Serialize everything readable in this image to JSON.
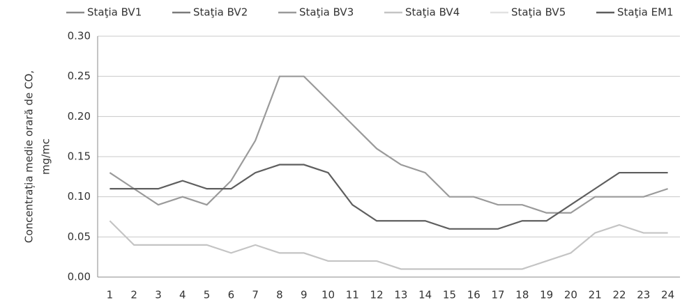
{
  "chart_data": {
    "type": "line",
    "ylabel": [
      "Concentrația medie orară de CO,",
      "mg/mc"
    ],
    "categories": [
      "1",
      "2",
      "3",
      "4",
      "5",
      "6",
      "7",
      "8",
      "9",
      "10",
      "11",
      "12",
      "13",
      "14",
      "15",
      "16",
      "17",
      "18",
      "19",
      "20",
      "21",
      "22",
      "23",
      "24"
    ],
    "series": [
      {
        "name": "Staţia BV1",
        "color": "#8a8a8a",
        "values": [
          null,
          null,
          null,
          null,
          null,
          null,
          null,
          null,
          null,
          null,
          null,
          null,
          null,
          null,
          null,
          null,
          null,
          null,
          null,
          null,
          null,
          null,
          null,
          null
        ]
      },
      {
        "name": "Staţia BV2",
        "color": "#7a7a7a",
        "values": [
          null,
          null,
          null,
          null,
          null,
          null,
          null,
          null,
          null,
          null,
          null,
          null,
          null,
          null,
          null,
          null,
          null,
          null,
          null,
          null,
          null,
          null,
          null,
          null
        ]
      },
      {
        "name": "Staţia BV3",
        "color": "#9a9a9a",
        "values": [
          0.13,
          0.11,
          0.09,
          0.1,
          0.09,
          0.12,
          0.17,
          0.25,
          0.25,
          0.22,
          0.19,
          0.16,
          0.14,
          0.13,
          0.1,
          0.1,
          0.09,
          0.09,
          0.08,
          0.08,
          0.1,
          0.1,
          0.1,
          0.11
        ]
      },
      {
        "name": "Staţia BV4",
        "color": "#c4c4c4",
        "values": [
          0.07,
          0.04,
          0.04,
          0.04,
          0.04,
          0.03,
          0.04,
          0.03,
          0.03,
          0.02,
          0.02,
          0.02,
          0.01,
          0.01,
          0.01,
          0.01,
          0.01,
          0.01,
          0.02,
          0.03,
          0.055,
          0.065,
          0.055,
          0.055
        ]
      },
      {
        "name": "Staţia BV5",
        "color": "#e2e2e2",
        "values": [
          null,
          null,
          null,
          null,
          null,
          null,
          null,
          null,
          null,
          null,
          null,
          null,
          null,
          null,
          null,
          null,
          null,
          null,
          null,
          null,
          null,
          null,
          null,
          null
        ]
      },
      {
        "name": "Staţia EM1",
        "color": "#5e5e5e",
        "values": [
          0.11,
          0.11,
          0.11,
          0.12,
          0.11,
          0.11,
          0.13,
          0.14,
          0.14,
          0.13,
          0.09,
          0.07,
          0.07,
          0.07,
          0.06,
          0.06,
          0.06,
          0.07,
          0.07,
          0.09,
          0.11,
          0.13,
          0.13,
          0.13
        ]
      }
    ],
    "ylim": [
      0,
      0.3
    ],
    "yticks": [
      {
        "value": 0,
        "label": "0.00"
      },
      0.05,
      {
        "value": 0.1,
        "label": "0.10"
      },
      0.15,
      {
        "value": 0.2,
        "label": "0.20"
      },
      0.25,
      {
        "value": 0.3,
        "label": "0.30"
      }
    ],
    "grid": true,
    "legend": "top"
  }
}
